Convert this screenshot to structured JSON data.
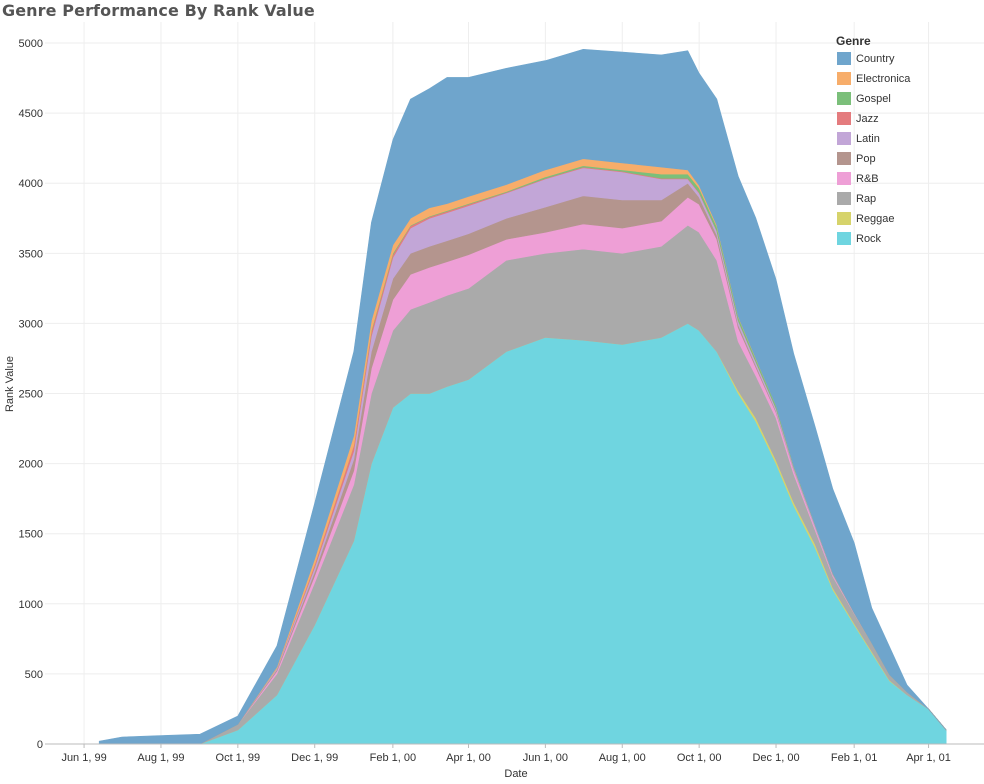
{
  "chart_data": {
    "type": "area",
    "stacked": true,
    "title": "Genre Performance By Rank Value",
    "xlabel": "Date",
    "ylabel": "Rank Value",
    "ylim": [
      0,
      5150
    ],
    "xlim": [
      "1999-05-01",
      "2001-05-15"
    ],
    "grid": true,
    "legend_title": "Genre",
    "legend_position": "top-right",
    "x_ticks": [
      {
        "date": "1999-06-01",
        "label": "Jun 1, 99"
      },
      {
        "date": "1999-08-01",
        "label": "Aug 1, 99"
      },
      {
        "date": "1999-10-01",
        "label": "Oct 1, 99"
      },
      {
        "date": "1999-12-01",
        "label": "Dec 1, 99"
      },
      {
        "date": "2000-02-01",
        "label": "Feb 1, 00"
      },
      {
        "date": "2000-04-01",
        "label": "Apr 1, 00"
      },
      {
        "date": "2000-06-01",
        "label": "Jun 1, 00"
      },
      {
        "date": "2000-08-01",
        "label": "Aug 1, 00"
      },
      {
        "date": "2000-10-01",
        "label": "Oct 1, 00"
      },
      {
        "date": "2000-12-01",
        "label": "Dec 1, 00"
      },
      {
        "date": "2001-02-01",
        "label": "Feb 1, 01"
      },
      {
        "date": "2001-04-01",
        "label": "Apr 1, 01"
      }
    ],
    "y_ticks": [
      0,
      500,
      1000,
      1500,
      2000,
      2500,
      3000,
      3500,
      4000,
      4500,
      5000
    ],
    "x": [
      "1999-06-13",
      "1999-07-01",
      "1999-08-01",
      "1999-09-01",
      "1999-10-01",
      "1999-11-01",
      "1999-12-01",
      "2000-01-01",
      "2000-01-15",
      "2000-02-01",
      "2000-02-15",
      "2000-03-01",
      "2000-03-15",
      "2000-04-01",
      "2000-05-01",
      "2000-06-01",
      "2000-07-01",
      "2000-08-01",
      "2000-09-01",
      "2000-09-22",
      "2000-10-01",
      "2000-10-15",
      "2000-11-01",
      "2000-11-15",
      "2000-12-01",
      "2000-12-15",
      "2001-01-01",
      "2001-01-15",
      "2001-02-01",
      "2001-02-15",
      "2001-03-01",
      "2001-03-15",
      "2001-04-01",
      "2001-04-15"
    ],
    "series": [
      {
        "name": "Rock",
        "color": "#6fd5e0",
        "values": [
          0,
          0,
          0,
          0,
          100,
          350,
          850,
          1450,
          2000,
          2400,
          2500,
          2500,
          2550,
          2600,
          2800,
          2900,
          2880,
          2850,
          2900,
          3000,
          2950,
          2800,
          2500,
          2300,
          2000,
          1700,
          1400,
          1100,
          850,
          650,
          450,
          350,
          250,
          100
        ]
      },
      {
        "name": "Reggae",
        "color": "#d6d36b",
        "values": [
          0,
          0,
          0,
          0,
          0,
          0,
          0,
          0,
          0,
          0,
          0,
          0,
          0,
          0,
          0,
          0,
          0,
          0,
          0,
          0,
          0,
          0,
          20,
          25,
          25,
          25,
          25,
          15,
          10,
          10,
          5,
          0,
          0,
          0
        ]
      },
      {
        "name": "Rap",
        "color": "#aaaaaa",
        "values": [
          0,
          0,
          0,
          0,
          40,
          150,
          300,
          400,
          500,
          550,
          600,
          650,
          650,
          650,
          650,
          600,
          650,
          650,
          650,
          700,
          700,
          650,
          350,
          300,
          300,
          200,
          100,
          80,
          70,
          60,
          40,
          20,
          0,
          0
        ]
      },
      {
        "name": "R&B",
        "color": "#ee9fd6",
        "values": [
          0,
          0,
          0,
          0,
          0,
          20,
          50,
          100,
          180,
          220,
          250,
          250,
          240,
          240,
          150,
          150,
          180,
          180,
          180,
          200,
          200,
          150,
          100,
          60,
          40,
          30,
          20,
          10,
          5,
          0,
          0,
          0,
          0,
          0
        ]
      },
      {
        "name": "Pop",
        "color": "#b4958e",
        "values": [
          0,
          0,
          0,
          0,
          0,
          10,
          30,
          80,
          120,
          150,
          150,
          150,
          150,
          150,
          150,
          180,
          200,
          200,
          150,
          100,
          50,
          30,
          20,
          15,
          10,
          5,
          0,
          0,
          0,
          0,
          0,
          0,
          0,
          0
        ]
      },
      {
        "name": "Latin",
        "color": "#c2a6d7",
        "values": [
          0,
          0,
          0,
          0,
          0,
          10,
          30,
          60,
          110,
          150,
          180,
          200,
          200,
          200,
          180,
          200,
          200,
          200,
          150,
          30,
          30,
          30,
          30,
          25,
          20,
          15,
          15,
          10,
          0,
          0,
          0,
          0,
          0,
          0
        ]
      },
      {
        "name": "Jazz",
        "color": "#e47b7e",
        "values": [
          0,
          0,
          0,
          0,
          0,
          0,
          20,
          40,
          30,
          20,
          15,
          10,
          10,
          10,
          5,
          5,
          5,
          5,
          5,
          5,
          5,
          0,
          0,
          0,
          0,
          0,
          0,
          0,
          0,
          0,
          0,
          0,
          0,
          0
        ]
      },
      {
        "name": "Gospel",
        "color": "#7bbf7a",
        "values": [
          0,
          0,
          0,
          0,
          0,
          0,
          0,
          0,
          10,
          10,
          5,
          5,
          5,
          5,
          5,
          10,
          10,
          10,
          30,
          30,
          30,
          30,
          25,
          20,
          20,
          10,
          5,
          5,
          0,
          0,
          0,
          0,
          0,
          0
        ]
      },
      {
        "name": "Electronica",
        "color": "#f7ad6a",
        "values": [
          0,
          0,
          0,
          0,
          0,
          10,
          40,
          70,
          70,
          60,
          50,
          60,
          50,
          50,
          50,
          50,
          50,
          50,
          50,
          30,
          20,
          10,
          5,
          5,
          0,
          0,
          0,
          0,
          0,
          0,
          0,
          0,
          0,
          0
        ]
      },
      {
        "name": "Country",
        "color": "#6fa5cc",
        "values": [
          20,
          50,
          60,
          70,
          60,
          150,
          400,
          600,
          700,
          750,
          850,
          850,
          900,
          850,
          830,
          780,
          780,
          790,
          800,
          850,
          800,
          900,
          1000,
          1000,
          900,
          800,
          700,
          600,
          500,
          250,
          200,
          50,
          0,
          0
        ]
      }
    ]
  }
}
